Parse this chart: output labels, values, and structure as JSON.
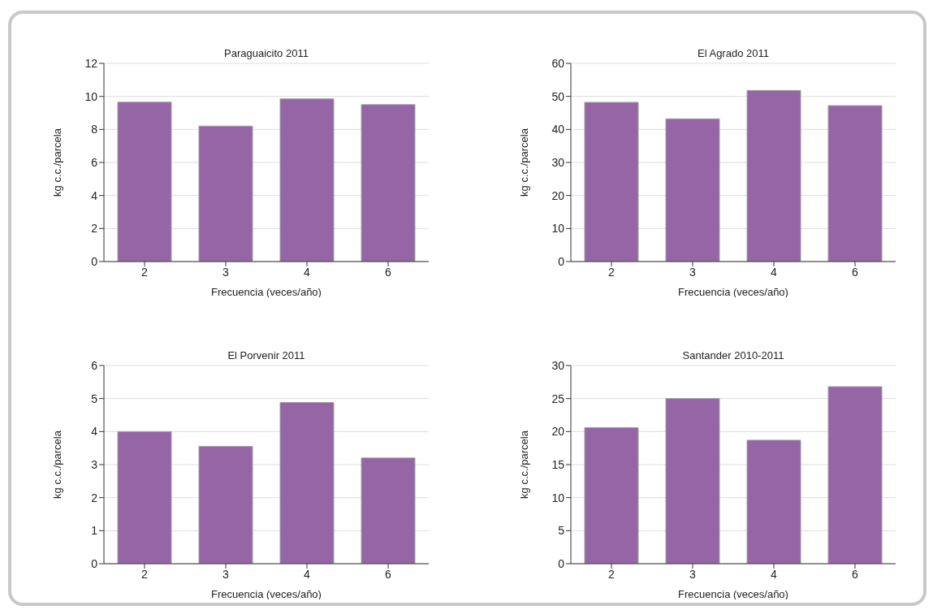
{
  "chart_data": [
    {
      "type": "bar",
      "title": "Paraguaicito 2011",
      "xlabel": "Frecuencia (veces/año)",
      "ylabel": "kg c.c./parcela",
      "categories": [
        "2",
        "3",
        "4",
        "6"
      ],
      "values": [
        9.65,
        8.2,
        9.85,
        9.5
      ],
      "color": "#9565a6",
      "ylim": [
        0,
        12
      ],
      "yticks": [
        0,
        2,
        4,
        6,
        8,
        10,
        12
      ],
      "grid": "y"
    },
    {
      "type": "bar",
      "title": "El Agrado 2011",
      "xlabel": "Frecuencia (veces/año)",
      "ylabel": "kg c.c./parcela",
      "categories": [
        "2",
        "3",
        "4",
        "6"
      ],
      "values": [
        48.2,
        43.2,
        51.8,
        47.2
      ],
      "color": "#9565a6",
      "ylim": [
        0,
        60
      ],
      "yticks": [
        0,
        10,
        20,
        30,
        40,
        50,
        60
      ],
      "grid": "y"
    },
    {
      "type": "bar",
      "title": "El Porvenir 2011",
      "xlabel": "Frecuencia (veces/año)",
      "ylabel": "kg c.c./parcela",
      "categories": [
        "2",
        "3",
        "4",
        "6"
      ],
      "values": [
        4.0,
        3.55,
        4.88,
        3.2
      ],
      "color": "#9565a6",
      "ylim": [
        0,
        6
      ],
      "yticks": [
        0,
        1,
        2,
        3,
        4,
        5,
        6
      ],
      "grid": "y"
    },
    {
      "type": "bar",
      "title": "Santander 2010-2011",
      "xlabel": "Frecuencia (veces/año)",
      "ylabel": "kg c.c./parcela",
      "categories": [
        "2",
        "3",
        "4",
        "6"
      ],
      "values": [
        20.6,
        25.0,
        18.7,
        26.8
      ],
      "color": "#9565a6",
      "ylim": [
        0,
        30
      ],
      "yticks": [
        0,
        5,
        10,
        15,
        20,
        25,
        30
      ],
      "grid": "y"
    }
  ]
}
